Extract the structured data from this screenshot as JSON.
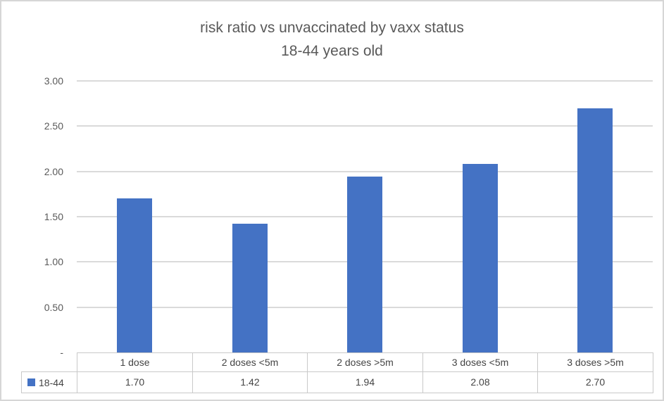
{
  "chart_data": {
    "type": "bar",
    "title": "risk ratio vs unvaccinated by vaxx status",
    "subtitle": "18-44 years old",
    "categories": [
      "1 dose",
      "2 doses <5m",
      "2 doses >5m",
      "3 doses <5m",
      "3 doses >5m"
    ],
    "series": [
      {
        "name": "18-44",
        "values": [
          1.7,
          1.42,
          1.94,
          2.08,
          2.7
        ]
      }
    ],
    "value_labels": [
      "1.70",
      "1.42",
      "1.94",
      "2.08",
      "2.70"
    ],
    "ylim": [
      0,
      3.0
    ],
    "ytick_values": [
      0,
      0.5,
      1.0,
      1.5,
      2.0,
      2.5,
      3.0
    ],
    "ytick_labels": [
      "-",
      "0.50",
      "1.00",
      "1.50",
      "2.00",
      "2.50",
      "3.00"
    ],
    "grid": true,
    "legend_position": "bottom-table",
    "bar_color": "#4472C4",
    "gridline_color": "#dadada",
    "text_color": "#595959"
  }
}
